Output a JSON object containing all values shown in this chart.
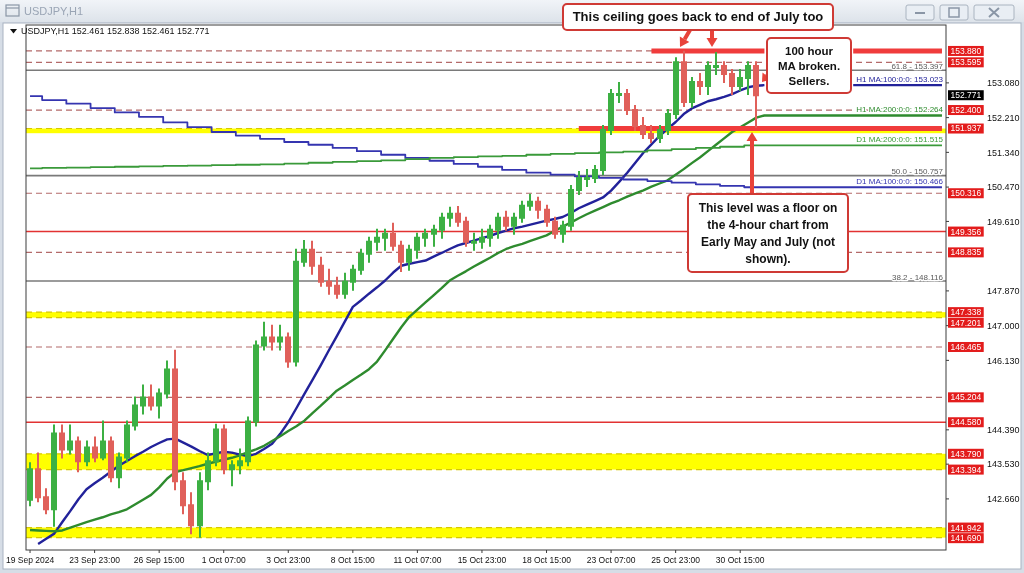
{
  "chart_data": {
    "type": "candlestick",
    "title": "USDJPY,H1",
    "subtitle": "USDJPY,H1 152.461 152.838 152.461 152.771",
    "categories": [
      "19 Sep 2024",
      null,
      null,
      null,
      null,
      null,
      null,
      null,
      "23 Sep 23:00",
      null,
      null,
      null,
      null,
      null,
      null,
      null,
      "26 Sep 15:00",
      null,
      null,
      null,
      null,
      null,
      null,
      null,
      "1 Oct 07:00",
      null,
      null,
      null,
      null,
      null,
      null,
      null,
      "3 Oct 23:00",
      null,
      null,
      null,
      null,
      null,
      null,
      null,
      "8 Oct 15:00",
      null,
      null,
      null,
      null,
      null,
      null,
      null,
      "11 Oct 07:00",
      null,
      null,
      null,
      null,
      null,
      null,
      null,
      "15 Oct 23:00",
      null,
      null,
      null,
      null,
      null,
      null,
      null,
      "18 Oct 15:00",
      null,
      null,
      null,
      null,
      null,
      null,
      null,
      "23 Oct 07:00",
      null,
      null,
      null,
      null,
      null,
      null,
      null,
      "25 Oct 23:00",
      null,
      null,
      null,
      null,
      null,
      null,
      null,
      "30 Oct 15:00",
      null,
      null,
      null,
      null,
      null,
      null,
      null,
      null,
      null,
      null,
      null,
      null,
      null,
      null,
      null,
      null,
      null,
      null,
      null,
      null,
      null,
      null,
      null,
      null,
      null
    ],
    "ohlc": [
      [
        142.64,
        143.55,
        142.5,
        143.4
      ],
      [
        143.4,
        143.8,
        142.6,
        142.7
      ],
      [
        142.7,
        142.9,
        142.3,
        142.4
      ],
      [
        142.4,
        144.5,
        141.99,
        144.3
      ],
      [
        144.3,
        144.5,
        143.7,
        143.9
      ],
      [
        143.9,
        144.5,
        143.8,
        144.1
      ],
      [
        144.1,
        144.2,
        143.35,
        143.6
      ],
      [
        143.6,
        144.1,
        143.5,
        143.95
      ],
      [
        143.95,
        144.2,
        143.6,
        143.7
      ],
      [
        143.7,
        144.6,
        143.65,
        144.1
      ],
      [
        144.1,
        144.2,
        143.1,
        143.2
      ],
      [
        143.2,
        143.8,
        142.95,
        143.7
      ],
      [
        143.7,
        144.6,
        143.6,
        144.5
      ],
      [
        144.5,
        145.2,
        144.4,
        145.0
      ],
      [
        145.0,
        145.5,
        144.8,
        145.2
      ],
      [
        145.2,
        145.5,
        144.9,
        145.0
      ],
      [
        145.0,
        145.4,
        144.7,
        145.3
      ],
      [
        145.3,
        146.1,
        145.2,
        145.9
      ],
      [
        145.9,
        146.37,
        142.9,
        143.1
      ],
      [
        143.1,
        143.3,
        142.3,
        142.5
      ],
      [
        142.5,
        142.8,
        141.8,
        142.0
      ],
      [
        142.0,
        143.3,
        141.71,
        143.1
      ],
      [
        143.1,
        143.8,
        142.9,
        143.6
      ],
      [
        143.6,
        144.52,
        143.5,
        144.4
      ],
      [
        144.4,
        144.5,
        143.3,
        143.4
      ],
      [
        143.4,
        143.6,
        143.0,
        143.5
      ],
      [
        143.5,
        143.9,
        143.3,
        143.6
      ],
      [
        143.6,
        144.7,
        143.5,
        144.6
      ],
      [
        144.6,
        146.6,
        144.5,
        146.5
      ],
      [
        146.5,
        147.07,
        146.4,
        146.7
      ],
      [
        146.7,
        147.0,
        146.4,
        146.6
      ],
      [
        146.6,
        147.0,
        146.4,
        146.7
      ],
      [
        146.7,
        146.8,
        145.97,
        146.1
      ],
      [
        146.1,
        148.9,
        146.0,
        148.6
      ],
      [
        148.6,
        149.12,
        148.5,
        148.9
      ],
      [
        148.9,
        149.1,
        148.3,
        148.5
      ],
      [
        148.5,
        148.7,
        148.0,
        148.1
      ],
      [
        148.1,
        148.4,
        147.8,
        148.0
      ],
      [
        148.0,
        148.2,
        147.7,
        147.8
      ],
      [
        147.8,
        148.3,
        147.7,
        148.1
      ],
      [
        148.1,
        148.5,
        147.9,
        148.4
      ],
      [
        148.4,
        148.9,
        148.3,
        148.8
      ],
      [
        148.8,
        149.2,
        148.6,
        149.1
      ],
      [
        149.1,
        149.4,
        148.9,
        149.2
      ],
      [
        149.2,
        149.4,
        148.9,
        149.3
      ],
      [
        149.3,
        149.55,
        148.9,
        149.0
      ],
      [
        149.0,
        149.1,
        148.37,
        148.6
      ],
      [
        148.6,
        149.0,
        148.4,
        148.9
      ],
      [
        148.9,
        149.3,
        148.7,
        149.2
      ],
      [
        149.2,
        149.4,
        149.0,
        149.3
      ],
      [
        149.3,
        149.5,
        149.0,
        149.4
      ],
      [
        149.4,
        149.8,
        149.2,
        149.7
      ],
      [
        149.7,
        149.95,
        149.5,
        149.8
      ],
      [
        149.8,
        149.97,
        149.5,
        149.6
      ],
      [
        149.6,
        149.7,
        149.0,
        149.1
      ],
      [
        149.1,
        149.3,
        148.9,
        149.1
      ],
      [
        149.1,
        149.4,
        148.95,
        149.2
      ],
      [
        149.2,
        149.5,
        149.0,
        149.4
      ],
      [
        149.4,
        149.8,
        149.2,
        149.7
      ],
      [
        149.7,
        149.85,
        149.4,
        149.5
      ],
      [
        149.5,
        149.8,
        149.3,
        149.7
      ],
      [
        149.7,
        150.1,
        149.6,
        150.0
      ],
      [
        150.0,
        150.28,
        149.9,
        150.1
      ],
      [
        150.1,
        150.2,
        149.7,
        149.9
      ],
      [
        149.9,
        150.0,
        149.5,
        149.6
      ],
      [
        149.6,
        149.7,
        149.2,
        149.3
      ],
      [
        149.3,
        149.6,
        149.1,
        149.5
      ],
      [
        149.5,
        150.5,
        149.4,
        150.4
      ],
      [
        150.4,
        150.85,
        150.3,
        150.7
      ],
      [
        150.7,
        150.9,
        150.5,
        150.7
      ],
      [
        150.7,
        151.0,
        150.6,
        150.9
      ],
      [
        150.9,
        152.0,
        150.8,
        151.9
      ],
      [
        151.9,
        152.9,
        151.8,
        152.8
      ],
      [
        152.8,
        153.08,
        152.6,
        152.8
      ],
      [
        152.8,
        152.9,
        152.3,
        152.4
      ],
      [
        152.4,
        152.5,
        151.9,
        152.0
      ],
      [
        152.0,
        152.2,
        151.7,
        151.8
      ],
      [
        151.8,
        152.0,
        151.6,
        151.7
      ],
      [
        151.7,
        152.0,
        151.6,
        151.9
      ],
      [
        151.9,
        152.4,
        151.8,
        152.3
      ],
      [
        152.3,
        153.7,
        152.2,
        153.6
      ],
      [
        153.6,
        153.86,
        152.5,
        152.6
      ],
      [
        152.6,
        153.2,
        152.48,
        153.1
      ],
      [
        153.1,
        153.3,
        152.8,
        153.0
      ],
      [
        153.0,
        153.6,
        152.8,
        153.5
      ],
      [
        153.5,
        153.83,
        153.3,
        153.5
      ],
      [
        153.5,
        153.6,
        153.1,
        153.3
      ],
      [
        153.3,
        153.4,
        152.8,
        153.0
      ],
      [
        153.0,
        153.4,
        152.9,
        153.2
      ],
      [
        153.2,
        153.6,
        152.8,
        153.5
      ],
      [
        153.5,
        153.6,
        151.98,
        152.771
      ],
      null,
      null,
      null,
      null,
      null,
      null,
      null,
      null,
      null,
      null,
      null,
      null,
      null,
      null,
      null,
      null,
      null,
      null,
      null,
      null,
      null,
      null,
      null
    ],
    "colors": [
      "#3cb043",
      "#e0605a",
      "#e0605a",
      "#3cb043",
      "#e0605a",
      "#3cb043",
      "#e0605a",
      "#3cb043",
      "#e0605a",
      "#3cb043",
      "#e0605a",
      "#3cb043",
      "#3cb043",
      "#3cb043",
      "#3cb043",
      "#e0605a",
      "#3cb043",
      "#3cb043",
      "#e0605a",
      "#e0605a",
      "#e0605a",
      "#3cb043",
      "#3cb043",
      "#3cb043",
      "#e0605a",
      "#3cb043",
      "#3cb043",
      "#3cb043",
      "#3cb043",
      "#3cb043",
      "#e0605a",
      "#3cb043",
      "#e0605a",
      "#3cb043",
      "#3cb043",
      "#e0605a",
      "#e0605a",
      "#e0605a",
      "#e0605a",
      "#3cb043",
      "#3cb043",
      "#3cb043",
      "#3cb043",
      "#3cb043",
      "#3cb043",
      "#e0605a",
      "#e0605a",
      "#3cb043",
      "#3cb043",
      "#3cb043",
      "#3cb043",
      "#3cb043",
      "#3cb043",
      "#e0605a",
      "#e0605a",
      "#3cb043",
      "#3cb043",
      "#3cb043",
      "#3cb043",
      "#e0605a",
      "#3cb043",
      "#3cb043",
      "#3cb043",
      "#e0605a",
      "#e0605a",
      "#e0605a",
      "#3cb043",
      "#3cb043",
      "#3cb043",
      "#3cb043",
      "#3cb043",
      "#3cb043",
      "#3cb043",
      "#3cb043",
      "#e0605a",
      "#e0605a",
      "#e0605a",
      "#e0605a",
      "#3cb043",
      "#3cb043",
      "#3cb043",
      "#e0605a",
      "#3cb043",
      "#e0605a",
      "#3cb043",
      "#3cb043",
      "#e0605a",
      "#e0605a",
      "#3cb043",
      "#3cb043",
      "#e0605a",
      null,
      null,
      null,
      null,
      null,
      null,
      null,
      null,
      null,
      null,
      null,
      null,
      null,
      null,
      null,
      null,
      null,
      null,
      null,
      null,
      null,
      null,
      null
    ],
    "series": [
      {
        "type": "line",
        "name": "H1 MA:100:0:0: 153.023",
        "color": "#22229a",
        "values": [
          null,
          141.53,
          141.66,
          141.79,
          142.08,
          142.36,
          142.65,
          142.9,
          143.05,
          143.19,
          143.34,
          143.49,
          143.61,
          143.73,
          143.84,
          143.96,
          144.06,
          144.15,
          144.17,
          144.07,
          143.97,
          143.86,
          143.76,
          143.8,
          143.84,
          143.82,
          143.77,
          143.73,
          143.79,
          143.91,
          144.04,
          144.29,
          144.58,
          144.93,
          145.29,
          145.64,
          146.0,
          146.37,
          146.73,
          147.1,
          147.47,
          147.63,
          147.8,
          147.96,
          148.13,
          148.33,
          148.5,
          148.55,
          148.59,
          148.63,
          148.73,
          148.82,
          148.92,
          149.01,
          149.07,
          149.13,
          149.19,
          149.25,
          149.32,
          149.38,
          149.44,
          149.48,
          149.53,
          149.58,
          149.63,
          149.67,
          149.72,
          149.82,
          149.94,
          150.03,
          150.12,
          150.21,
          150.38,
          150.6,
          150.83,
          151.08,
          151.33,
          151.54,
          151.75,
          151.93,
          152.1,
          152.3,
          152.44,
          152.53,
          152.62,
          152.67,
          152.73,
          152.8,
          152.89,
          152.97,
          153.01,
          153.023,
          null,
          null,
          null,
          null,
          null,
          null,
          null,
          null,
          null,
          null,
          153.023,
          153.023,
          153.023,
          153.023,
          153.023,
          153.023,
          153.023,
          153.023,
          153.023,
          153.023,
          153.023,
          153.023
        ]
      },
      {
        "type": "line",
        "name": "H1 MA:200:0:0: 152.264",
        "color": "#2e8b2e",
        "values": [
          141.88,
          141.87,
          141.86,
          141.85,
          141.87,
          141.94,
          142.01,
          142.08,
          142.14,
          142.2,
          142.27,
          142.33,
          142.4,
          142.52,
          142.64,
          142.76,
          142.95,
          143.17,
          143.33,
          143.38,
          143.43,
          143.48,
          143.54,
          143.59,
          143.64,
          143.69,
          143.75,
          143.83,
          143.9,
          143.99,
          144.11,
          144.23,
          144.36,
          144.48,
          144.62,
          144.81,
          144.99,
          145.18,
          145.37,
          145.5,
          145.64,
          145.77,
          145.91,
          146.1,
          146.38,
          146.67,
          146.96,
          147.22,
          147.4,
          147.58,
          147.76,
          147.94,
          148.13,
          148.25,
          148.36,
          148.48,
          148.59,
          148.7,
          148.82,
          148.92,
          148.99,
          149.05,
          149.12,
          149.19,
          149.26,
          149.37,
          149.48,
          149.58,
          149.69,
          149.79,
          149.88,
          149.97,
          150.06,
          150.14,
          150.23,
          150.31,
          150.39,
          150.48,
          150.56,
          150.64,
          150.78,
          150.92,
          151.07,
          151.21,
          151.37,
          151.53,
          151.69,
          151.85,
          151.97,
          152.09,
          152.21,
          152.264,
          152.264,
          152.264,
          152.264,
          152.264,
          152.264,
          152.264,
          152.264,
          152.264,
          152.264,
          152.264,
          152.264,
          152.264,
          152.264,
          152.264,
          152.264,
          152.264,
          152.264,
          152.264,
          152.264,
          152.264,
          152.264,
          152.264
        ]
      },
      {
        "type": "step",
        "name": "D1 MA:100:0:0: 150.466",
        "color": "#3535b0",
        "values": [
          152.75,
          152.75,
          152.65,
          152.65,
          152.65,
          152.56,
          152.56,
          152.56,
          152.45,
          152.45,
          152.45,
          152.34,
          152.34,
          152.34,
          152.23,
          152.23,
          152.23,
          152.09,
          152.09,
          152.09,
          151.97,
          151.97,
          151.97,
          151.85,
          151.85,
          151.85,
          151.76,
          151.76,
          151.76,
          151.68,
          151.68,
          151.68,
          151.6,
          151.6,
          151.6,
          151.53,
          151.53,
          151.53,
          151.45,
          151.45,
          151.45,
          151.37,
          151.37,
          151.37,
          151.28,
          151.28,
          151.28,
          151.2,
          151.2,
          151.2,
          151.13,
          151.13,
          151.13,
          151.05,
          151.05,
          151.05,
          150.98,
          150.98,
          150.98,
          150.9,
          150.9,
          150.9,
          150.83,
          150.83,
          150.83,
          150.78,
          150.78,
          150.78,
          150.74,
          150.74,
          150.74,
          150.7,
          150.7,
          150.7,
          150.66,
          150.66,
          150.66,
          150.62,
          150.62,
          150.62,
          150.58,
          150.58,
          150.58,
          150.54,
          150.54,
          150.54,
          150.5,
          150.5,
          150.5,
          150.466,
          150.466,
          150.466,
          150.466,
          150.466,
          150.466,
          150.466,
          150.466,
          150.466,
          150.466,
          150.466,
          150.466,
          150.466,
          150.466,
          150.466,
          150.466,
          150.466,
          150.466,
          150.466,
          150.466,
          150.466,
          150.466,
          150.466,
          150.466,
          150.466
        ]
      },
      {
        "type": "step",
        "name": "D1 MA:200:0:0: 151.515",
        "color": "#3a9a3a",
        "values": [
          150.94,
          150.94,
          150.95,
          150.95,
          150.95,
          150.96,
          150.96,
          150.96,
          150.97,
          150.97,
          150.97,
          150.98,
          150.98,
          150.98,
          150.99,
          150.99,
          150.99,
          151.0,
          151.0,
          151.0,
          151.01,
          151.01,
          151.01,
          151.02,
          151.02,
          151.02,
          151.03,
          151.03,
          151.03,
          151.04,
          151.04,
          151.04,
          151.06,
          151.06,
          151.06,
          151.08,
          151.08,
          151.08,
          151.1,
          151.1,
          151.1,
          151.12,
          151.12,
          151.12,
          151.14,
          151.14,
          151.14,
          151.17,
          151.17,
          151.17,
          151.2,
          151.2,
          151.2,
          151.22,
          151.22,
          151.22,
          151.24,
          151.24,
          151.24,
          151.25,
          151.25,
          151.25,
          151.28,
          151.28,
          151.28,
          151.3,
          151.3,
          151.3,
          151.32,
          151.32,
          151.32,
          151.34,
          151.34,
          151.34,
          151.36,
          151.36,
          151.36,
          151.39,
          151.39,
          151.39,
          151.42,
          151.42,
          151.42,
          151.45,
          151.45,
          151.45,
          151.48,
          151.48,
          151.48,
          151.515,
          151.515,
          151.515,
          151.515,
          151.515,
          151.515,
          151.515,
          151.515,
          151.515,
          151.515,
          151.515,
          151.515,
          151.515,
          151.515,
          151.515,
          151.515,
          151.515,
          151.515,
          151.515,
          151.515,
          151.515,
          151.515,
          151.515,
          151.515,
          151.515
        ]
      },
      {
        "type": "line",
        "color": "#f03c3c",
        "values": [
          null,
          null,
          null,
          null,
          null,
          null,
          null,
          null,
          null,
          null,
          null,
          null,
          null,
          null,
          null,
          null,
          null,
          null,
          null,
          null,
          null,
          null,
          null,
          null,
          null,
          null,
          null,
          null,
          null,
          null,
          null,
          null,
          null,
          null,
          null,
          null,
          null,
          null,
          null,
          null,
          null,
          null,
          null,
          null,
          null,
          null,
          null,
          null,
          null,
          null,
          null,
          null,
          null,
          null,
          null,
          null,
          null,
          null,
          null,
          null,
          null,
          null,
          null,
          null,
          null,
          null,
          null,
          null,
          null,
          null,
          null,
          null,
          null,
          null,
          null,
          null,
          null,
          153.88,
          153.88,
          153.88,
          153.88,
          153.88,
          153.88,
          153.88,
          153.88,
          153.88,
          153.88,
          153.88,
          153.88,
          153.88,
          153.88,
          153.88,
          null,
          null,
          null,
          null,
          null,
          null,
          null,
          null,
          null,
          null,
          153.88,
          153.88,
          153.88,
          153.88,
          153.88,
          153.88,
          153.88,
          153.88,
          153.88,
          153.88,
          153.88,
          153.88
        ]
      },
      {
        "type": "line",
        "color": "#f03c3c",
        "values": [
          null,
          null,
          null,
          null,
          null,
          null,
          null,
          null,
          null,
          null,
          null,
          null,
          null,
          null,
          null,
          null,
          null,
          null,
          null,
          null,
          null,
          null,
          null,
          null,
          null,
          null,
          null,
          null,
          null,
          null,
          null,
          null,
          null,
          null,
          null,
          null,
          null,
          null,
          null,
          null,
          null,
          null,
          null,
          null,
          null,
          null,
          null,
          null,
          null,
          null,
          null,
          null,
          null,
          null,
          null,
          null,
          null,
          null,
          null,
          null,
          null,
          null,
          null,
          null,
          null,
          null,
          null,
          null,
          151.937,
          151.937,
          151.937,
          151.937,
          151.937,
          151.937,
          151.937,
          151.937,
          151.937,
          151.937,
          151.937,
          151.937,
          151.937,
          151.937,
          151.937,
          151.937,
          151.937,
          151.937,
          151.937,
          151.937,
          151.937,
          151.937,
          151.937,
          151.937,
          151.937,
          151.937,
          151.937,
          151.937,
          151.937,
          151.937,
          151.937,
          151.937,
          151.937,
          151.937,
          151.937,
          151.937,
          151.937,
          151.937,
          151.937,
          151.937,
          151.937,
          151.937,
          151.937,
          151.937,
          151.937,
          151.937
        ]
      }
    ],
    "ylim": [
      141.38,
      154.53
    ],
    "yticks": [
      {
        "value": 142.66,
        "label": "142.660"
      },
      {
        "value": 143.53,
        "label": "143.530"
      },
      {
        "value": 144.39,
        "label": "144.390"
      },
      {
        "value": 146.13,
        "label": "146.130"
      },
      {
        "value": 147.0,
        "label": "147.000"
      },
      {
        "value": 147.87,
        "label": "147.870"
      },
      {
        "value": 149.61,
        "label": "149.610"
      },
      {
        "value": 150.47,
        "label": "150.470"
      },
      {
        "value": 151.34,
        "label": "151.340"
      },
      {
        "value": 152.21,
        "label": "152.210"
      },
      {
        "value": 153.08,
        "label": "153.080"
      }
    ],
    "ref_lines": [
      {
        "axis": "y",
        "value": 153.88,
        "label": "153.880",
        "color": "#b46a6a",
        "line_style": "dashed"
      },
      {
        "axis": "y",
        "value": 153.595,
        "label": "153.595",
        "color": "#b46a6a",
        "line_style": "dashed"
      },
      {
        "axis": "y",
        "value": 152.4,
        "label": "152.400",
        "color": "#b46a6a",
        "line_style": "dashed"
      },
      {
        "axis": "y",
        "value": 151.937,
        "label": "151.937",
        "color": "#d8c800",
        "line_style": "dashed"
      },
      {
        "axis": "y",
        "value": 150.316,
        "label": "150.316",
        "color": "#b46a6a",
        "line_style": "dashed"
      },
      {
        "axis": "y",
        "value": 149.356,
        "label": "149.356",
        "color": "#e23232",
        "line_style": "solid"
      },
      {
        "axis": "y",
        "value": 148.835,
        "label": "148.835",
        "color": "#b46a6a",
        "line_style": "dashed"
      },
      {
        "axis": "y",
        "value": 147.338,
        "label": "147.338",
        "color": "#d8c800",
        "line_style": "dashed"
      },
      {
        "axis": "y",
        "value": 147.201,
        "label": "147.201",
        "color": "#d8c800",
        "line_style": "dashed"
      },
      {
        "axis": "y",
        "value": 146.465,
        "label": "146.465",
        "color": "#b46a6a",
        "line_style": "dashed"
      },
      {
        "axis": "y",
        "value": 145.204,
        "label": "145.204",
        "color": "#b46a6a",
        "line_style": "dashed"
      },
      {
        "axis": "y",
        "value": 144.58,
        "label": "144.580",
        "color": "#e23232",
        "line_style": "solid"
      },
      {
        "axis": "y",
        "value": 143.79,
        "label": "143.790",
        "color": "#d8c800",
        "line_style": "dashed"
      },
      {
        "axis": "y",
        "value": 143.394,
        "label": "143.394",
        "color": "#d8c800",
        "line_style": "dashed"
      },
      {
        "axis": "y",
        "value": 141.942,
        "label": "141.942",
        "color": "#d8c800",
        "line_style": "dashed"
      },
      {
        "axis": "y",
        "value": 141.69,
        "label": "141.690",
        "color": "#d8c800",
        "line_style": "dashed"
      },
      {
        "axis": "y",
        "value": 153.397,
        "color": "#7a7a7a",
        "line_style": "solid"
      },
      {
        "axis": "y",
        "value": 150.757,
        "color": "#7a7a7a",
        "line_style": "solid"
      },
      {
        "axis": "y",
        "value": 148.116,
        "color": "#7a7a7a",
        "line_style": "solid"
      }
    ],
    "bands": [
      {
        "axis": "y",
        "from": 151.82,
        "to": 151.937,
        "color": "#ffff00"
      },
      {
        "axis": "y",
        "from": 147.201,
        "to": 147.338,
        "color": "#ffff00"
      },
      {
        "axis": "y",
        "from": 143.394,
        "to": 143.79,
        "color": "#ffff00"
      },
      {
        "axis": "y",
        "from": 141.69,
        "to": 141.942,
        "color": "#ffff00"
      }
    ],
    "annotations": [
      "This ceiling goes back to end of July too",
      "100 hour MA broken. Sellers.",
      "This level was a floor on the 4-hour chart from Early May and July (not shown).",
      "152.771",
      "61.8 - 153.397",
      "50.0 - 150.757",
      "38.2 - 148.116"
    ]
  }
}
